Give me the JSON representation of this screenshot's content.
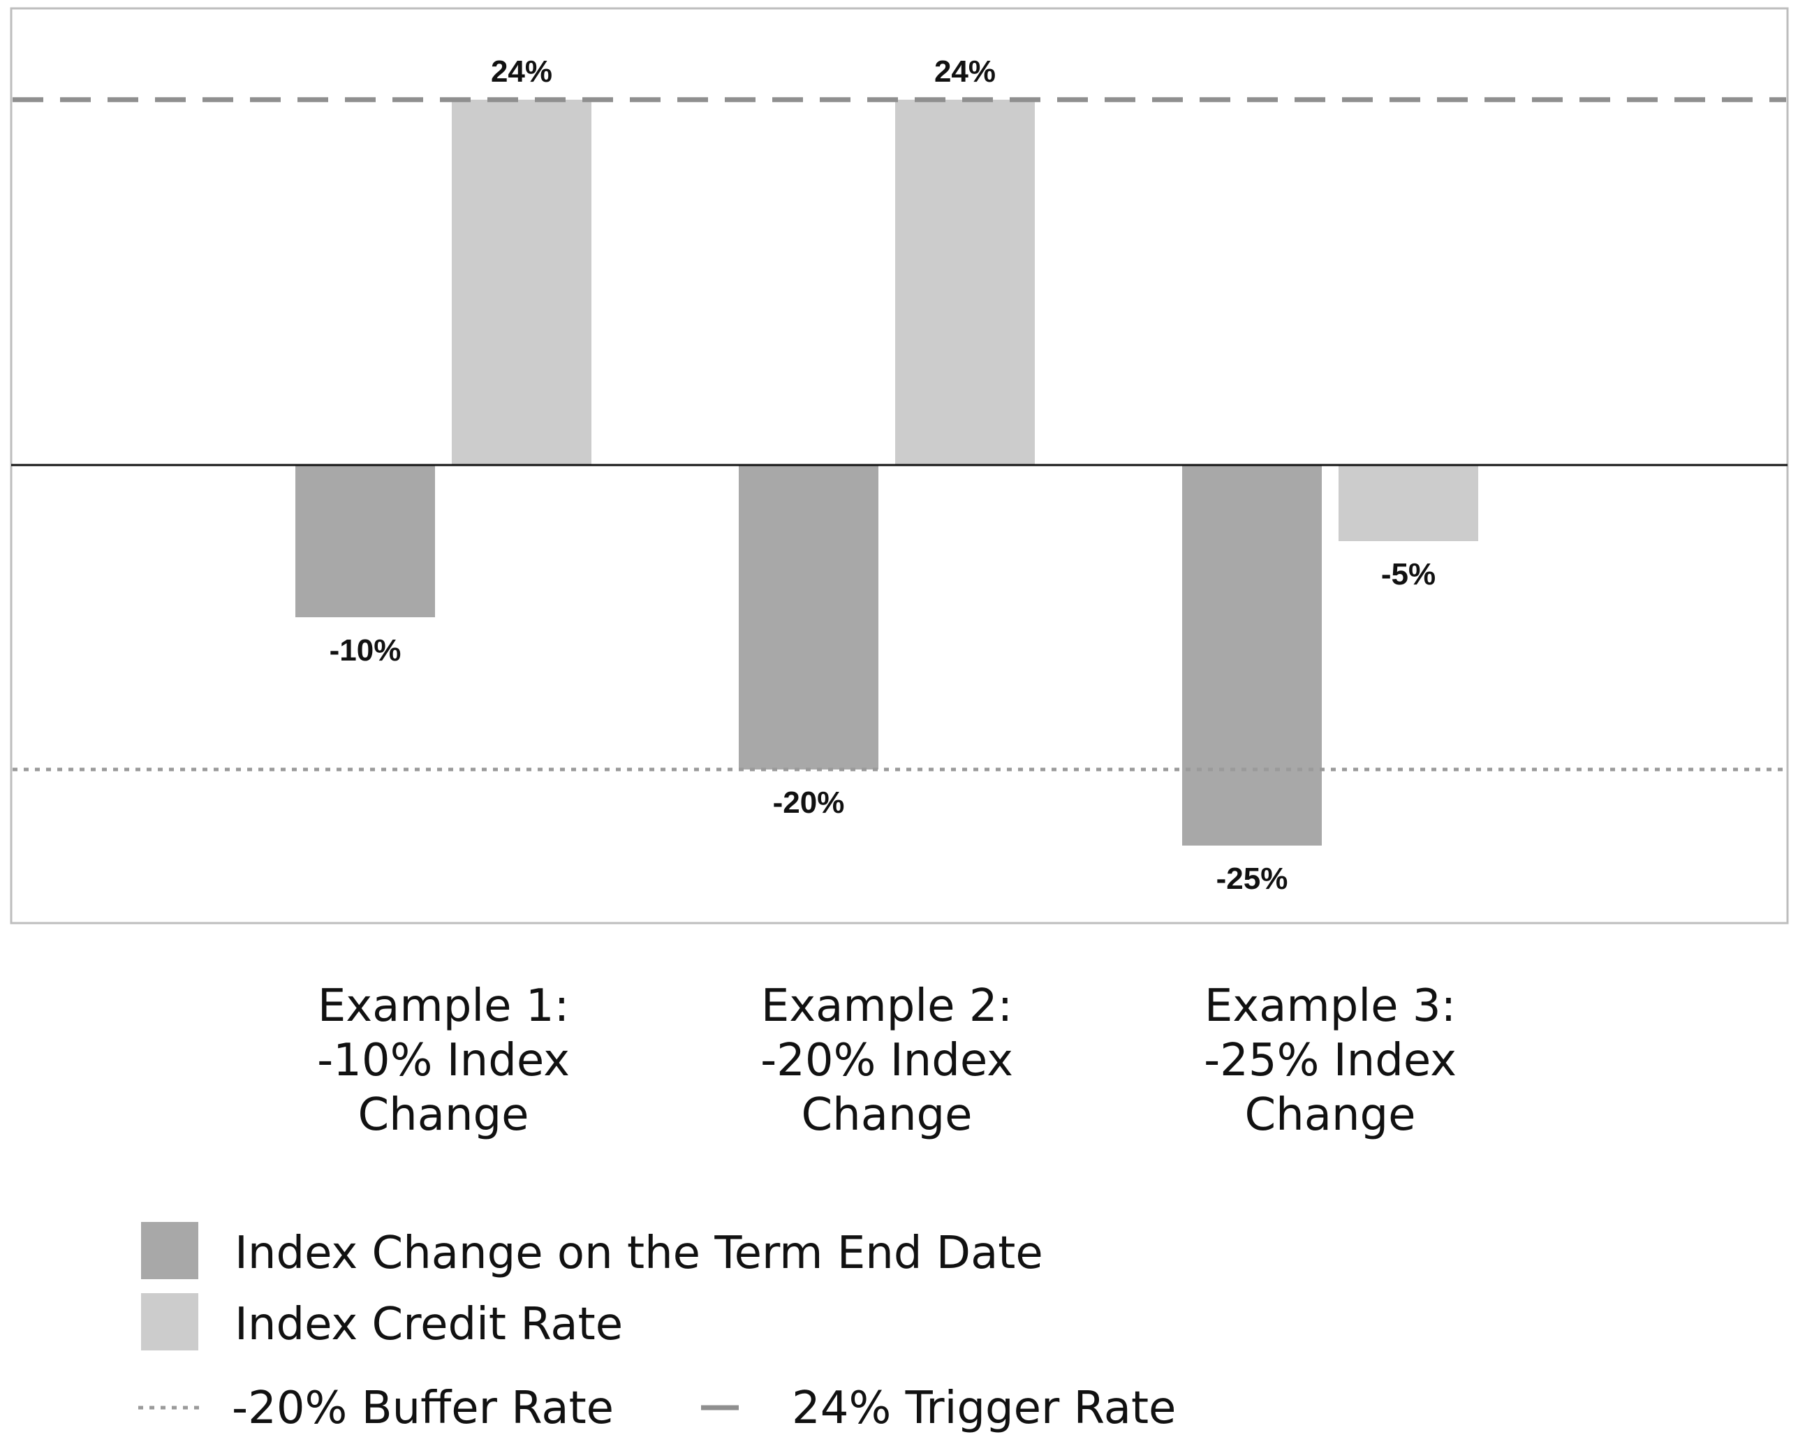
{
  "chart_data": {
    "type": "bar",
    "categories": [
      [
        "Example 1:",
        "-10% Index",
        "Change"
      ],
      [
        "Example 2:",
        "-20% Index",
        "Change"
      ],
      [
        "Example 3:",
        "-25% Index",
        "Change"
      ]
    ],
    "series": [
      {
        "name": "Index Change on the Term End Date",
        "values": [
          -10,
          -20,
          -25
        ],
        "labels": [
          "-10%",
          "-20%",
          "-25%"
        ],
        "color": "#a8a8a8"
      },
      {
        "name": "Index Credit Rate",
        "values": [
          24,
          24,
          -5
        ],
        "labels": [
          "24%",
          "24%",
          "-5%"
        ],
        "color": "#cccccc"
      }
    ],
    "reference_lines": [
      {
        "name": "-20% Buffer Rate",
        "value": -20,
        "style": "dotted",
        "color": "#9a9a9a"
      },
      {
        "name": "24% Trigger Rate",
        "value": 24,
        "style": "dashed",
        "color": "#8f8f8f"
      }
    ],
    "ylim": [
      -30,
      30
    ],
    "grid": false,
    "legend_position": "bottom-left",
    "frame_color": "#bdbdbd",
    "zero_line_color": "#111111"
  }
}
